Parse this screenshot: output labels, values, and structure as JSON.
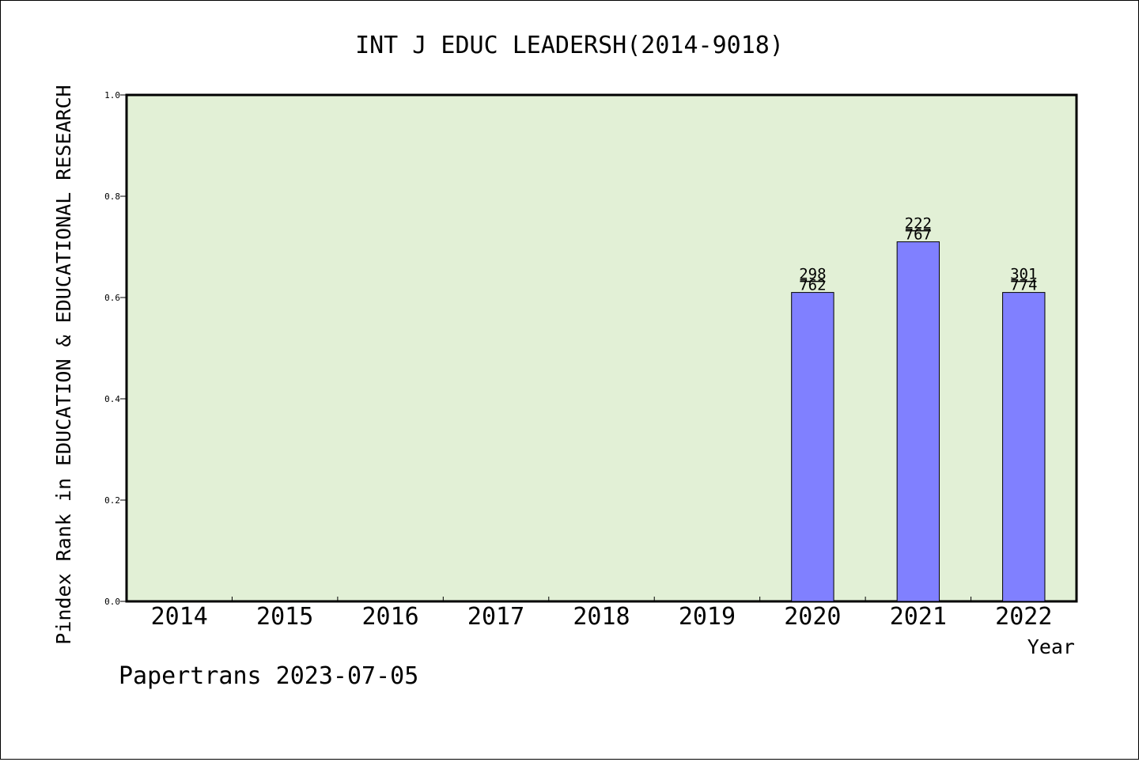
{
  "chart_data": {
    "type": "bar",
    "title": "INT J EDUC LEADERSH(2014-9018)",
    "xlabel": "Year",
    "ylabel": "Pindex Rank in EDUCATION & EDUCATIONAL RESEARCH",
    "footer": "Papertrans 2023-07-05",
    "categories": [
      "2014",
      "2015",
      "2016",
      "2017",
      "2018",
      "2019",
      "2020",
      "2021",
      "2022"
    ],
    "values": [
      null,
      null,
      null,
      null,
      null,
      null,
      0.61,
      0.71,
      0.61
    ],
    "bar_labels": [
      null,
      null,
      null,
      null,
      null,
      null,
      {
        "top": "298",
        "bottom": "762"
      },
      {
        "top": "222",
        "bottom": "767"
      },
      {
        "top": "301",
        "bottom": "774"
      }
    ],
    "ylim": [
      0,
      1.0
    ],
    "yticks": [
      "0.0",
      "0.2",
      "0.4",
      "0.6",
      "0.8",
      "1.0"
    ],
    "ytick_values": [
      0,
      0.2,
      0.4,
      0.6,
      0.8,
      1.0
    ],
    "grid": false,
    "colors": {
      "plot_background": "#e2f0d6",
      "bar_fill": "#8080ff",
      "bar_stroke": "#000000"
    }
  }
}
